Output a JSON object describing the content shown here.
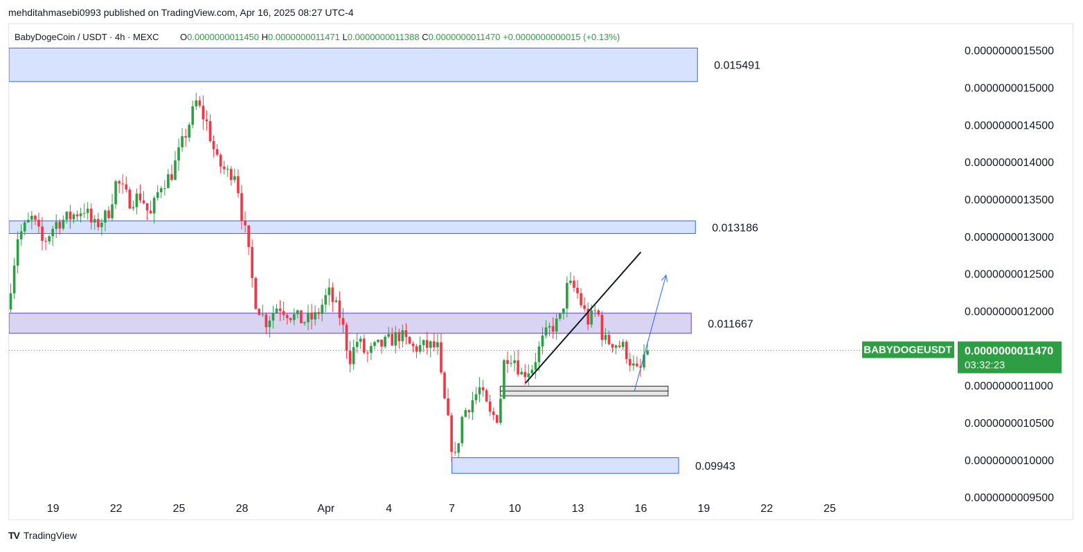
{
  "header": {
    "publisher": "mehditahmasebi0993 published on TradingView.com, Apr 16, 2025 08:27 UTC-4"
  },
  "legend": {
    "symbol": "BabyDogeCoin / USDT · 4h · MEXC",
    "open_label": "O",
    "open": "0.0000000011450",
    "high_label": "H",
    "high": "0.0000000011471",
    "low_label": "L",
    "low": "0.0000000011388",
    "close_label": "C",
    "close": "0.0000000011470",
    "change": "+0.0000000000015 (+0.13%)"
  },
  "footer": {
    "brand": "TradingView",
    "logo": "TV"
  },
  "colors": {
    "up": "#26a69a",
    "down": "#ef5350",
    "up_candle": "#2e9e44",
    "down_candle": "#f23645",
    "zone": "#d6e2ff",
    "zone_border": "#2962ff",
    "mid_zone": "#d9d4f2",
    "mid_border": "#5b3cc4",
    "price_tag": "#2e9e44"
  },
  "chart_data": {
    "type": "candlestick",
    "symbol": "BABYDOGEUSDT",
    "interval": "4h",
    "last_price": "0.0000000011470",
    "countdown": "03:32:23",
    "y_ticks": [
      {
        "value": 1.55e-09,
        "label": "0.0000000015500"
      },
      {
        "value": 1.5e-09,
        "label": "0.0000000015000"
      },
      {
        "value": 1.45e-09,
        "label": "0.0000000014500"
      },
      {
        "value": 1.4e-09,
        "label": "0.0000000014000"
      },
      {
        "value": 1.35e-09,
        "label": "0.0000000013500"
      },
      {
        "value": 1.3e-09,
        "label": "0.0000000013000"
      },
      {
        "value": 1.25e-09,
        "label": "0.0000000012500"
      },
      {
        "value": 1.2e-09,
        "label": "0.0000000012000"
      },
      {
        "value": 1.1e-09,
        "label": "0.0000000011000"
      },
      {
        "value": 1.05e-09,
        "label": "0.0000000010500"
      },
      {
        "value": 1e-09,
        "label": "0.0000000010000"
      },
      {
        "value": 9.5e-10,
        "label": "0.0000000009500"
      }
    ],
    "ylim": [
      9.2e-10,
      1.585e-09
    ],
    "x_ticks": [
      {
        "day": 19,
        "label": "19"
      },
      {
        "day": 22,
        "label": "22"
      },
      {
        "day": 25,
        "label": "25"
      },
      {
        "day": 28,
        "label": "28"
      },
      {
        "day": 32,
        "label": "Apr"
      },
      {
        "day": 35,
        "label": "4"
      },
      {
        "day": 38,
        "label": "7"
      },
      {
        "day": 41,
        "label": "10"
      },
      {
        "day": 44,
        "label": "13"
      },
      {
        "day": 47,
        "label": "16"
      },
      {
        "day": 50,
        "label": "19"
      },
      {
        "day": 53,
        "label": "22"
      },
      {
        "day": 56,
        "label": "25"
      }
    ],
    "xlim": [
      16.9,
      61.5
    ],
    "zones": [
      {
        "label": "0.015491",
        "top": 1.553e-09,
        "bottom": 1.508e-09,
        "x_start": 16.9,
        "x_end": 49.7,
        "style": "blue"
      },
      {
        "label": "0.013186",
        "top": 1.321e-09,
        "bottom": 1.304e-09,
        "x_start": 16.9,
        "x_end": 49.6,
        "style": "blue"
      },
      {
        "label": "0.011667",
        "top": 1.197e-09,
        "bottom": 1.17e-09,
        "x_start": 16.9,
        "x_end": 49.4,
        "style": "purple"
      },
      {
        "label": "",
        "top": 1.099e-09,
        "bottom": 1.086e-09,
        "x_start": 40.3,
        "x_end": 48.3,
        "style": "gray"
      },
      {
        "label": "0.09943",
        "top": 1.003e-09,
        "bottom": 9.82e-10,
        "x_start": 38.0,
        "x_end": 48.8,
        "style": "blue"
      }
    ],
    "trendline": {
      "from": [
        41.5,
        1.103e-09
      ],
      "to": [
        47.0,
        1.279e-09
      ]
    },
    "projection_arrow": {
      "from": [
        46.7,
        1.093e-09
      ],
      "to": [
        48.2,
        1.248e-09
      ]
    },
    "candles": []
  }
}
